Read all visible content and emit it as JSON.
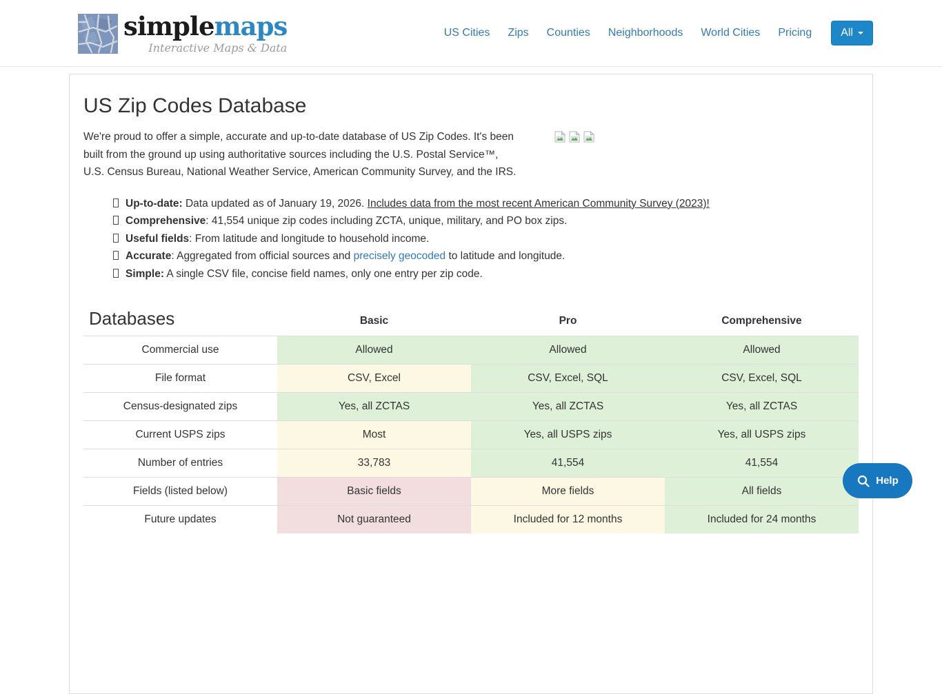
{
  "brand": {
    "word_simple": "simple",
    "word_maps": "maps",
    "tagline": "Interactive Maps & Data"
  },
  "nav": {
    "links": [
      "US Cities",
      "Zips",
      "Counties",
      "Neighborhoods",
      "World Cities",
      "Pricing"
    ],
    "all_label": "All"
  },
  "page": {
    "title": "US Zip Codes Database",
    "intro": "We're proud to offer a simple, accurate and up-to-date database of US Zip Codes. It's been built from the ground up using authoritative sources including the U.S. Postal Service™, U.S. Census Bureau, National Weather Service, American Community Survey, and the IRS.",
    "features": [
      {
        "bold": "Up-to-date:",
        "text": " Data updated as of January 19, 2026. ",
        "underline": "Includes data from the most recent American Community Survey (2023)!"
      },
      {
        "bold": "Comprehensive",
        "text": ": 41,554 unique zip codes including ZCTA, unique, military, and PO box zips."
      },
      {
        "bold": "Useful fields",
        "text": ": From latitude and longitude to household income."
      },
      {
        "bold": "Accurate",
        "text": ": Aggregated from official sources and ",
        "link": "precisely geocoded",
        "suffix": " to latitude and longitude."
      },
      {
        "bold": "Simple:",
        "text": " A single CSV file, concise field names, only one entry per zip code."
      }
    ],
    "placeholder_image_count": 3
  },
  "table": {
    "section_title": "Databases",
    "columns": [
      "Basic",
      "Pro",
      "Comprehensive"
    ],
    "rows": [
      {
        "label": "Commercial use",
        "cells": [
          {
            "text": "Allowed",
            "tone": "success"
          },
          {
            "text": "Allowed",
            "tone": "success"
          },
          {
            "text": "Allowed",
            "tone": "success"
          }
        ]
      },
      {
        "label": "File format",
        "cells": [
          {
            "text": "CSV, Excel",
            "tone": "warning"
          },
          {
            "text": "CSV, Excel, SQL",
            "tone": "success"
          },
          {
            "text": "CSV, Excel, SQL",
            "tone": "success"
          }
        ]
      },
      {
        "label": "Census-designated zips",
        "cells": [
          {
            "text": "Yes, all ZCTAS",
            "tone": "success"
          },
          {
            "text": "Yes, all ZCTAS",
            "tone": "success"
          },
          {
            "text": "Yes, all ZCTAS",
            "tone": "success"
          }
        ]
      },
      {
        "label": "Current USPS zips",
        "cells": [
          {
            "text": "Most",
            "tone": "warning"
          },
          {
            "text": "Yes, all USPS zips",
            "tone": "success"
          },
          {
            "text": "Yes, all USPS zips",
            "tone": "success"
          }
        ]
      },
      {
        "label": "Number of entries",
        "cells": [
          {
            "text": "33,783",
            "tone": "warning"
          },
          {
            "text": "41,554",
            "tone": "success"
          },
          {
            "text": "41,554",
            "tone": "success"
          }
        ]
      },
      {
        "label": "Fields (listed below)",
        "cells": [
          {
            "text": "Basic fields",
            "tone": "danger"
          },
          {
            "text": "More fields",
            "tone": "warning"
          },
          {
            "text": "All fields",
            "tone": "success"
          }
        ]
      },
      {
        "label": "Future updates",
        "cells": [
          {
            "text": "Not guaranteed",
            "tone": "danger"
          },
          {
            "text": "Included for 12 months",
            "tone": "warning"
          },
          {
            "text": "Included for 24 months",
            "tone": "success"
          }
        ]
      }
    ]
  },
  "help": {
    "label": "Help"
  },
  "colors": {
    "accent_blue": "#1e87c8",
    "link_blue": "#337ab7",
    "brand_blue": "#2d87c3",
    "help_blue": "#1778bf",
    "success_bg": "#dff0d8",
    "warning_bg": "#fcf8e3",
    "danger_bg": "#f2dede"
  }
}
